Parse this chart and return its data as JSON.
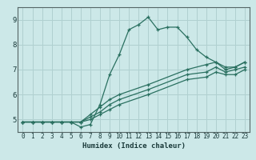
{
  "title": "",
  "xlabel": "Humidex (Indice chaleur)",
  "ylabel": "",
  "bg_color": "#cce8e8",
  "grid_color": "#b0d0d0",
  "line_color": "#2a7060",
  "xlim": [
    -0.5,
    23.5
  ],
  "ylim": [
    4.5,
    9.5
  ],
  "xticks": [
    0,
    1,
    2,
    3,
    4,
    5,
    6,
    7,
    8,
    9,
    10,
    11,
    12,
    13,
    14,
    15,
    16,
    17,
    18,
    19,
    20,
    21,
    22,
    23
  ],
  "yticks": [
    5,
    6,
    7,
    8,
    9
  ],
  "series": [
    {
      "x": [
        0,
        1,
        2,
        3,
        4,
        5,
        6,
        7,
        8,
        9,
        10,
        11,
        12,
        13,
        14,
        15,
        16,
        17,
        18,
        19,
        20,
        21,
        22,
        23
      ],
      "y": [
        4.9,
        4.9,
        4.9,
        4.9,
        4.9,
        4.9,
        4.7,
        4.8,
        5.6,
        6.8,
        7.6,
        8.6,
        8.8,
        9.1,
        8.6,
        8.7,
        8.7,
        8.3,
        7.8,
        7.5,
        7.3,
        7.0,
        7.1,
        7.3
      ]
    },
    {
      "x": [
        0,
        1,
        2,
        3,
        4,
        5,
        6,
        7,
        8,
        9,
        10,
        13,
        17,
        19,
        20,
        21,
        22,
        23
      ],
      "y": [
        4.9,
        4.9,
        4.9,
        4.9,
        4.9,
        4.9,
        4.9,
        5.2,
        5.5,
        5.8,
        6.0,
        6.4,
        7.0,
        7.2,
        7.3,
        7.1,
        7.1,
        7.3
      ]
    },
    {
      "x": [
        0,
        1,
        2,
        3,
        4,
        5,
        6,
        7,
        8,
        9,
        10,
        13,
        17,
        19,
        20,
        21,
        22,
        23
      ],
      "y": [
        4.9,
        4.9,
        4.9,
        4.9,
        4.9,
        4.9,
        4.9,
        5.1,
        5.3,
        5.6,
        5.8,
        6.2,
        6.8,
        6.9,
        7.1,
        6.9,
        7.0,
        7.1
      ]
    },
    {
      "x": [
        0,
        1,
        2,
        3,
        4,
        5,
        6,
        7,
        8,
        9,
        10,
        13,
        17,
        19,
        20,
        21,
        22,
        23
      ],
      "y": [
        4.9,
        4.9,
        4.9,
        4.9,
        4.9,
        4.9,
        4.9,
        5.0,
        5.2,
        5.4,
        5.6,
        6.0,
        6.6,
        6.7,
        6.9,
        6.8,
        6.8,
        7.0
      ]
    }
  ]
}
